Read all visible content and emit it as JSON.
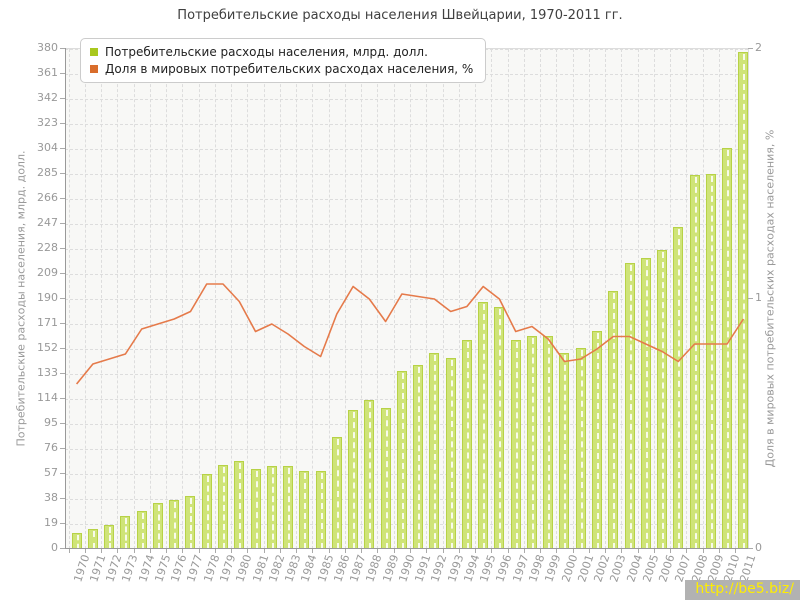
{
  "title": "Потребительские расходы населения Швейцарии, 1970-2011 гг.",
  "legend": [
    {
      "label": "Потребительские расходы населения, млрд. долл.",
      "color": "#a9c81e"
    },
    {
      "label": "Доля в мировых потребительских расходах населения, %",
      "color": "#d96d2b"
    }
  ],
  "watermark": "http://be5.biz/",
  "colors": {
    "bar_fill": "#cfe478",
    "bar_border": "#b7d246",
    "line": "#e57a4a",
    "plot_bg": "#f8f8f6",
    "grid": "#dddddd",
    "tick_text": "#999999",
    "title_text": "#404040",
    "watermark_bg": "#b2b2b2",
    "watermark_text": "#ffee00"
  },
  "chart_data": {
    "type": "bar",
    "title": "Потребительские расходы населения Швейцарии, 1970-2011 гг.",
    "categories": [
      1970,
      1971,
      1972,
      1973,
      1974,
      1975,
      1976,
      1977,
      1978,
      1979,
      1980,
      1981,
      1982,
      1983,
      1984,
      1985,
      1986,
      1987,
      1988,
      1989,
      1990,
      1991,
      1992,
      1993,
      1994,
      1995,
      1996,
      1997,
      1998,
      1999,
      2000,
      2001,
      2002,
      2003,
      2004,
      2005,
      2006,
      2007,
      2008,
      2009,
      2010,
      2011
    ],
    "series": [
      {
        "name": "Потребительские расходы населения, млрд. долл.",
        "type": "bar",
        "axis": "left",
        "values": [
          12,
          15,
          18,
          25,
          29,
          35,
          37,
          40,
          57,
          64,
          67,
          61,
          63,
          63,
          59,
          59,
          85,
          106,
          113,
          107,
          135,
          140,
          149,
          145,
          159,
          188,
          184,
          159,
          162,
          162,
          149,
          153,
          166,
          196,
          217,
          221,
          227,
          245,
          284,
          285,
          305,
          378
        ]
      },
      {
        "name": "Доля в мировых потребительских расходах населения, %",
        "type": "line",
        "axis": "right",
        "values": [
          0.66,
          0.74,
          0.76,
          0.78,
          0.88,
          0.9,
          0.92,
          0.95,
          1.06,
          1.06,
          0.99,
          0.87,
          0.9,
          0.86,
          0.81,
          0.77,
          0.94,
          1.05,
          1.0,
          0.91,
          1.02,
          1.01,
          1.0,
          0.95,
          0.97,
          1.05,
          1.0,
          0.87,
          0.89,
          0.84,
          0.75,
          0.76,
          0.8,
          0.85,
          0.85,
          0.82,
          0.79,
          0.75,
          0.82,
          0.82,
          0.82,
          0.92
        ]
      }
    ],
    "left_axis": {
      "label": "Потребительские расходы населения, млрд. долл.",
      "min": 0,
      "max": 380,
      "tick_step": 19,
      "tick_labels": [
        0,
        19,
        38,
        57,
        76,
        95,
        114,
        133,
        152,
        171,
        190,
        209,
        228,
        247,
        266,
        285,
        304,
        323,
        342,
        361,
        380
      ]
    },
    "right_axis": {
      "label": "Доля в мировых потребительских расходах населения, %",
      "min": 0,
      "max": 2,
      "tick_labels": [
        0,
        1,
        2
      ]
    },
    "grid": true,
    "legend_position": "top-left"
  }
}
